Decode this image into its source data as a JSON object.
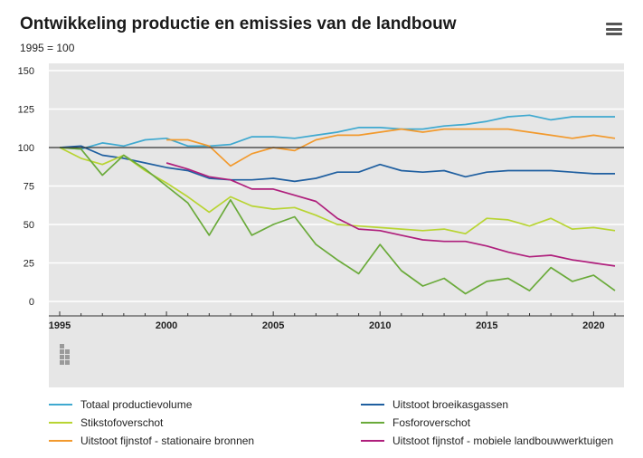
{
  "header": {
    "title": "Ontwikkeling productie en emissies van de landbouw",
    "subtitle": "1995 = 100",
    "menu_icon": "hamburger-menu-icon"
  },
  "colors": {
    "plot_background": "#e6e6e6",
    "gridline": "#ffffff",
    "reference_line": "#333333"
  },
  "chart_data": {
    "type": "line",
    "title": "Ontwikkeling productie en emissies van de landbouw",
    "subtitle": "1995 = 100",
    "xlabel": "",
    "ylabel": "",
    "xlim": [
      1995,
      2021
    ],
    "ylim": [
      0,
      150
    ],
    "x_ticks": [
      "1995",
      "2000",
      "2005",
      "2010",
      "2015",
      "2020"
    ],
    "y_ticks": [
      "0",
      "25",
      "50",
      "75",
      "100",
      "125",
      "150"
    ],
    "reference_line": 100,
    "grid": true,
    "legend_position": "bottom",
    "watermark": "cbs-logo",
    "series": [
      {
        "name": "Totaal productievolume",
        "color": "#3fa9d0",
        "x": [
          1995,
          1996,
          1997,
          1998,
          1999,
          2000,
          2001,
          2002,
          2003,
          2004,
          2005,
          2006,
          2007,
          2008,
          2009,
          2010,
          2011,
          2012,
          2013,
          2014,
          2015,
          2016,
          2017,
          2018,
          2019,
          2020,
          2021
        ],
        "values": [
          100,
          99,
          103,
          101,
          105,
          106,
          101,
          101,
          102,
          107,
          107,
          106,
          108,
          110,
          113,
          113,
          112,
          112,
          114,
          115,
          117,
          120,
          121,
          118,
          120,
          120,
          120
        ]
      },
      {
        "name": "Uitstoot broeikasgassen",
        "color": "#1f5fa0",
        "x": [
          1995,
          1996,
          1997,
          1998,
          1999,
          2000,
          2001,
          2002,
          2003,
          2004,
          2005,
          2006,
          2007,
          2008,
          2009,
          2010,
          2011,
          2012,
          2013,
          2014,
          2015,
          2016,
          2017,
          2018,
          2019,
          2020,
          2021
        ],
        "values": [
          100,
          101,
          95,
          93,
          90,
          87,
          85,
          80,
          79,
          79,
          80,
          78,
          80,
          84,
          84,
          89,
          85,
          84,
          85,
          81,
          84,
          85,
          85,
          85,
          84,
          83,
          83
        ]
      },
      {
        "name": "Stikstofoverschot",
        "color": "#b8d432",
        "x": [
          1995,
          1996,
          1997,
          1998,
          1999,
          2000,
          2001,
          2002,
          2003,
          2004,
          2005,
          2006,
          2007,
          2008,
          2009,
          2010,
          2011,
          2012,
          2013,
          2014,
          2015,
          2016,
          2017,
          2018,
          2019,
          2020,
          2021
        ],
        "values": [
          100,
          93,
          89,
          95,
          85,
          77,
          68,
          58,
          68,
          62,
          60,
          61,
          56,
          50,
          49,
          48,
          47,
          46,
          47,
          44,
          54,
          53,
          49,
          54,
          47,
          48,
          46
        ]
      },
      {
        "name": "Fosforoverschot",
        "color": "#6aaa3a",
        "x": [
          1995,
          1996,
          1997,
          1998,
          1999,
          2000,
          2001,
          2002,
          2003,
          2004,
          2005,
          2006,
          2007,
          2008,
          2009,
          2010,
          2011,
          2012,
          2013,
          2014,
          2015,
          2016,
          2017,
          2018,
          2019,
          2020,
          2021
        ],
        "values": [
          100,
          99,
          82,
          95,
          86,
          75,
          64,
          43,
          66,
          43,
          50,
          55,
          37,
          27,
          18,
          37,
          20,
          10,
          15,
          5,
          13,
          15,
          7,
          22,
          13,
          17,
          7
        ]
      },
      {
        "name": "Uitstoot fijnstof - stationaire bronnen",
        "color": "#f29a2e",
        "x": [
          2000,
          2001,
          2002,
          2003,
          2004,
          2005,
          2006,
          2007,
          2008,
          2009,
          2010,
          2011,
          2012,
          2013,
          2014,
          2015,
          2016,
          2017,
          2018,
          2019,
          2020,
          2021
        ],
        "values": [
          105,
          105,
          101,
          88,
          96,
          100,
          98,
          105,
          108,
          108,
          110,
          112,
          110,
          112,
          112,
          112,
          112,
          110,
          108,
          106,
          108,
          106
        ]
      },
      {
        "name": "Uitstoot fijnstof - mobiele landbouwwerktuigen",
        "color": "#af1f7c",
        "x": [
          2000,
          2001,
          2002,
          2003,
          2004,
          2005,
          2006,
          2007,
          2008,
          2009,
          2010,
          2011,
          2012,
          2013,
          2014,
          2015,
          2016,
          2017,
          2018,
          2019,
          2020,
          2021
        ],
        "values": [
          90,
          86,
          81,
          79,
          73,
          73,
          69,
          65,
          54,
          47,
          46,
          43,
          40,
          39,
          39,
          36,
          32,
          29,
          30,
          27,
          25,
          23
        ]
      }
    ]
  }
}
